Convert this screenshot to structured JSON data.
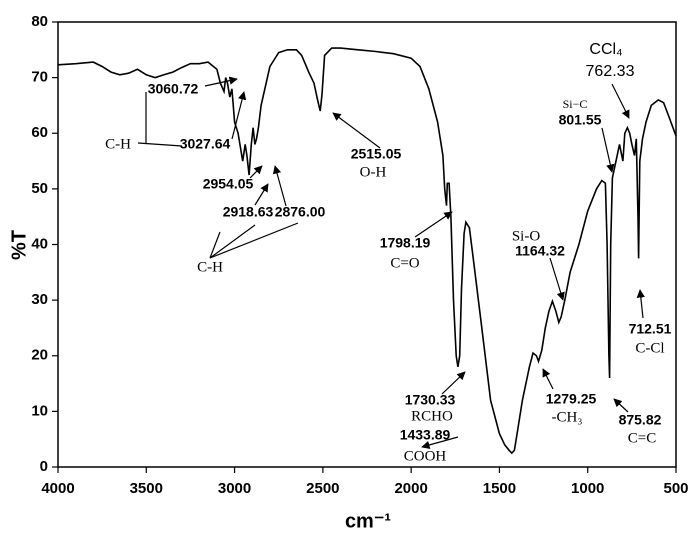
{
  "chart_data": {
    "type": "line",
    "x_label": "cm⁻¹",
    "y_label": "%T",
    "xlim": [
      4000,
      500
    ],
    "ylim": [
      0,
      80
    ],
    "xticks": [
      4000,
      3500,
      3000,
      2500,
      2000,
      1500,
      1000,
      500
    ],
    "yticks": [
      0,
      10,
      20,
      30,
      40,
      50,
      60,
      70,
      80
    ],
    "x": [
      4000,
      3900,
      3800,
      3750,
      3700,
      3650,
      3600,
      3550,
      3500,
      3450,
      3400,
      3350,
      3300,
      3250,
      3200,
      3150,
      3100,
      3080,
      3060,
      3050,
      3040,
      3027,
      3015,
      3000,
      2980,
      2954,
      2940,
      2930,
      2918,
      2905,
      2895,
      2885,
      2876,
      2865,
      2850,
      2800,
      2750,
      2700,
      2650,
      2620,
      2580,
      2550,
      2530,
      2515,
      2505,
      2490,
      2450,
      2400,
      2300,
      2200,
      2100,
      2000,
      1950,
      1900,
      1850,
      1820,
      1810,
      1800,
      1795,
      1785,
      1775,
      1760,
      1745,
      1735,
      1725,
      1715,
      1700,
      1690,
      1670,
      1650,
      1600,
      1550,
      1500,
      1470,
      1445,
      1430,
      1415,
      1400,
      1370,
      1330,
      1310,
      1290,
      1279,
      1260,
      1240,
      1220,
      1200,
      1180,
      1164,
      1150,
      1130,
      1100,
      1050,
      1000,
      950,
      920,
      900,
      890,
      880,
      876,
      870,
      860,
      840,
      820,
      801,
      790,
      775,
      762,
      750,
      735,
      725,
      715,
      712,
      705,
      690,
      670,
      640,
      600,
      570,
      540,
      500
    ],
    "series": [
      {
        "name": "spectrum",
        "color": "#000000",
        "values": [
          72.3,
          72.5,
          72.8,
          72.0,
          71.0,
          70.5,
          70.8,
          71.5,
          70.5,
          70.0,
          70.5,
          71.0,
          71.8,
          72.5,
          72.5,
          72.8,
          71.5,
          69.0,
          67.5,
          70.0,
          69.0,
          66.5,
          68.0,
          62.0,
          60.0,
          55.0,
          58.0,
          56.0,
          52.5,
          58.0,
          61.0,
          58.0,
          59.0,
          61.0,
          65.0,
          72.0,
          74.5,
          75.0,
          75.0,
          74.0,
          71.0,
          69.0,
          66.0,
          64.0,
          67.0,
          74.0,
          75.3,
          75.3,
          75.0,
          74.7,
          74.3,
          73.5,
          72.0,
          68.0,
          62.0,
          56.0,
          50.0,
          47.0,
          51.0,
          51.0,
          45.0,
          30.0,
          20.0,
          18.0,
          20.0,
          32.0,
          42.0,
          44.0,
          43.0,
          38.0,
          25.0,
          12.0,
          6.0,
          4.0,
          3.0,
          2.5,
          3.0,
          6.0,
          12.0,
          18.0,
          20.5,
          20.0,
          19.0,
          21.0,
          25.0,
          28.0,
          29.8,
          28.0,
          26.0,
          27.0,
          30.0,
          35.0,
          40.0,
          46.0,
          50.0,
          51.5,
          51.0,
          40.0,
          20.0,
          16.0,
          40.0,
          52.0,
          55.0,
          58.0,
          55.0,
          60.0,
          61.0,
          60.0,
          58.0,
          56.0,
          59.0,
          45.0,
          37.5,
          55.0,
          59.0,
          62.0,
          65.0,
          66.0,
          65.5,
          63.0,
          59.5
        ]
      }
    ],
    "annotations": [
      "3060.72",
      "3027.64",
      "C-H",
      "2954.05",
      "2918.63",
      "2876.00",
      "C-H",
      "2515.05",
      "O-H",
      "1798.19",
      "C=O",
      "1730.33",
      "RCHO",
      "1433.89",
      "COOH",
      "Si-O",
      "1164.32",
      "1279.25",
      "-CH₃",
      "CCl₄",
      "762.33",
      "Si−C",
      "801.55",
      "875.82",
      "C=C",
      "712.51",
      "C-Cl"
    ]
  }
}
